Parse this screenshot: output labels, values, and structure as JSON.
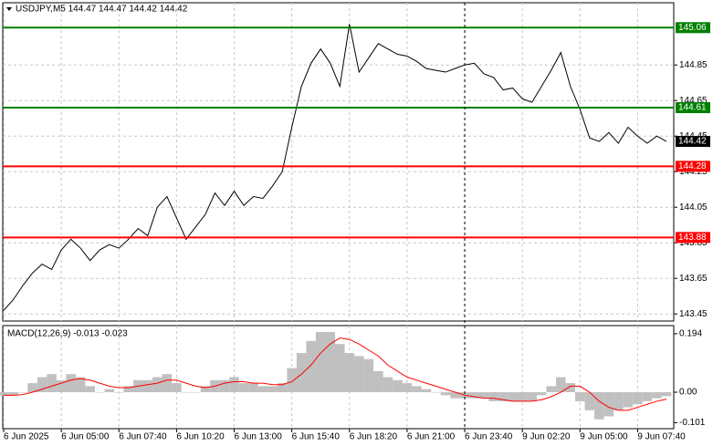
{
  "chart_data": [
    {
      "type": "line",
      "title": "USDJPY,M5  144.47 144.47 144.42 144.42",
      "color": "#000000",
      "values": [
        143.47,
        143.53,
        143.61,
        143.68,
        143.73,
        143.7,
        143.81,
        143.87,
        143.82,
        143.75,
        143.81,
        143.84,
        143.82,
        143.87,
        143.93,
        143.89,
        144.05,
        144.11,
        143.99,
        143.87,
        143.94,
        144.01,
        144.13,
        144.06,
        144.14,
        144.06,
        144.11,
        144.1,
        144.17,
        144.25,
        144.5,
        144.73,
        144.86,
        144.94,
        144.86,
        144.73,
        145.08,
        144.81,
        144.89,
        144.97,
        144.94,
        144.91,
        144.9,
        144.87,
        144.83,
        144.82,
        144.81,
        144.83,
        144.85,
        144.86,
        144.8,
        144.78,
        144.71,
        144.72,
        144.66,
        144.64,
        144.73,
        144.82,
        144.92,
        144.73,
        144.6,
        144.44,
        144.42,
        144.47,
        144.41,
        144.5,
        144.45,
        144.41,
        144.45,
        144.42
      ],
      "ylim": [
        143.41,
        145.2
      ],
      "yticks": [
        143.45,
        143.65,
        143.85,
        144.05,
        144.25,
        144.45,
        144.65,
        144.85
      ],
      "grid": true,
      "levels": [
        {
          "value": 145.06,
          "color": "#008000"
        },
        {
          "value": 144.61,
          "color": "#008000"
        },
        {
          "value": 144.28,
          "color": "#ff0000"
        },
        {
          "value": 143.88,
          "color": "#ff0000"
        }
      ]
    },
    {
      "type": "macd",
      "title": "MACD(12,26,9) -0.013 -0.023",
      "categories": [
        "6 Jun 2025",
        null,
        null,
        null,
        null,
        null,
        "6 Jun 05:00",
        null,
        null,
        null,
        null,
        null,
        "6 Jun 07:40",
        null,
        null,
        null,
        null,
        null,
        "6 Jun 10:20",
        null,
        null,
        null,
        null,
        null,
        "6 Jun 13:00",
        null,
        null,
        null,
        null,
        null,
        "6 Jun 15:40",
        null,
        null,
        null,
        null,
        null,
        "6 Jun 18:20",
        null,
        null,
        null,
        null,
        null,
        "6 Jun 21:00",
        null,
        null,
        null,
        null,
        null,
        "6 Jun 23:40",
        null,
        null,
        null,
        null,
        null,
        "9 Jun 02:20",
        null,
        null,
        null,
        null,
        null,
        "9 Jun 05:00",
        null,
        null,
        null,
        null,
        null,
        "9 Jun 07:40",
        null,
        null,
        null
      ],
      "series": [
        {
          "color": "#c0c0c0",
          "values": [
            -0.01,
            -0.01,
            0.0,
            0.03,
            0.05,
            0.06,
            0.04,
            0.06,
            0.05,
            0.02,
            0.0,
            0.01,
            0.0,
            0.02,
            0.04,
            0.04,
            0.05,
            0.06,
            0.03,
            0.0,
            0.0,
            0.02,
            0.04,
            0.04,
            0.05,
            0.03,
            0.03,
            0.02,
            0.02,
            0.03,
            0.08,
            0.13,
            0.17,
            0.2,
            0.2,
            0.16,
            0.13,
            0.12,
            0.11,
            0.07,
            0.05,
            0.04,
            0.03,
            0.02,
            0.01,
            0.0,
            -0.01,
            -0.02,
            -0.02,
            -0.02,
            -0.02,
            -0.03,
            -0.03,
            -0.03,
            -0.03,
            -0.03,
            -0.01,
            0.02,
            0.05,
            0.03,
            -0.03,
            -0.06,
            -0.09,
            -0.08,
            -0.06,
            -0.05,
            -0.04,
            -0.03,
            -0.02,
            -0.013
          ]
        },
        {
          "color": "#ff0000",
          "values": [
            -0.01,
            -0.01,
            -0.008,
            0.0,
            0.01,
            0.02,
            0.03,
            0.04,
            0.045,
            0.04,
            0.03,
            0.02,
            0.015,
            0.015,
            0.02,
            0.025,
            0.03,
            0.04,
            0.04,
            0.03,
            0.02,
            0.015,
            0.02,
            0.03,
            0.035,
            0.035,
            0.03,
            0.03,
            0.025,
            0.025,
            0.035,
            0.06,
            0.09,
            0.13,
            0.16,
            0.18,
            0.175,
            0.16,
            0.14,
            0.12,
            0.09,
            0.07,
            0.05,
            0.04,
            0.03,
            0.02,
            0.01,
            0.0,
            -0.01,
            -0.015,
            -0.02,
            -0.02,
            -0.025,
            -0.03,
            -0.03,
            -0.03,
            -0.025,
            -0.015,
            0.0,
            0.02,
            0.02,
            0.0,
            -0.03,
            -0.05,
            -0.06,
            -0.06,
            -0.05,
            -0.04,
            -0.03,
            -0.023
          ]
        }
      ],
      "ylim": [
        -0.121,
        0.221
      ],
      "yticks": [
        -0.101,
        {
          "value": 0,
          "label": "0.00"
        },
        0.194
      ],
      "grid": true
    }
  ]
}
